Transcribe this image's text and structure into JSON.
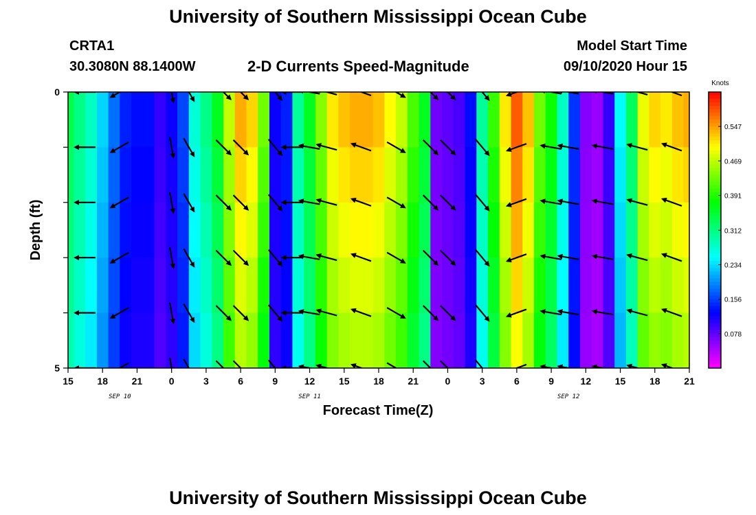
{
  "header": {
    "title_top": "University of Southern Mississippi Ocean Cube",
    "title_bottom": "University of Southern Mississippi Ocean Cube",
    "station_id": "CRTA1",
    "station_coords": "30.3080N 88.1400W",
    "plot_title": "2-D Currents Speed-Magnitude",
    "model_start_label": "Model Start Time",
    "model_start_value": "09/10/2020 Hour 15"
  },
  "chart_data": {
    "type": "heatmap",
    "title": "2-D Currents Speed-Magnitude",
    "xlabel": "Forecast Time(Z)",
    "ylabel": "Depth (ft)",
    "x_ticks": [
      "15",
      "18",
      "21",
      "0",
      "3",
      "6",
      "9",
      "12",
      "15",
      "18",
      "21",
      "0",
      "3",
      "6",
      "9",
      "12",
      "15",
      "18",
      "21"
    ],
    "x_range_hours": [
      0,
      54
    ],
    "day_labels": [
      {
        "label": "SEP 10",
        "hour": 4.5
      },
      {
        "label": "SEP 11",
        "hour": 21
      },
      {
        "label": "SEP 12",
        "hour": 43.5
      }
    ],
    "y_ticks": [
      "0",
      "5"
    ],
    "ylim": [
      0,
      5
    ],
    "depth_levels": [
      0,
      1,
      2,
      3,
      4,
      5
    ],
    "colorbar": {
      "title": "Knots",
      "ticks": [
        "0.547",
        "0.469",
        "0.391",
        "0.312",
        "0.234",
        "0.156",
        "0.078"
      ],
      "tick_values": [
        0.547,
        0.469,
        0.391,
        0.312,
        0.234,
        0.156,
        0.078
      ],
      "range": [
        0.0,
        0.625
      ]
    },
    "speed_profile": [
      {
        "hour": 0,
        "speed": 0.34
      },
      {
        "hour": 1,
        "speed": 0.31
      },
      {
        "hour": 2,
        "speed": 0.28
      },
      {
        "hour": 3,
        "speed": 0.23
      },
      {
        "hour": 4,
        "speed": 0.18
      },
      {
        "hour": 5,
        "speed": 0.14
      },
      {
        "hour": 6,
        "speed": 0.13
      },
      {
        "hour": 7,
        "speed": 0.13
      },
      {
        "hour": 8,
        "speed": 0.1
      },
      {
        "hour": 9,
        "speed": 0.12
      },
      {
        "hour": 10,
        "speed": 0.16
      },
      {
        "hour": 11,
        "speed": 0.27
      },
      {
        "hour": 12,
        "speed": 0.31
      },
      {
        "hour": 13,
        "speed": 0.36
      },
      {
        "hour": 14,
        "speed": 0.47
      },
      {
        "hour": 15,
        "speed": 0.54
      },
      {
        "hour": 16,
        "speed": 0.52
      },
      {
        "hour": 17,
        "speed": 0.43
      },
      {
        "hour": 18,
        "speed": 0.12
      },
      {
        "hour": 19,
        "speed": 0.14
      },
      {
        "hour": 20,
        "speed": 0.3
      },
      {
        "hour": 21,
        "speed": 0.36
      },
      {
        "hour": 22,
        "speed": 0.44
      },
      {
        "hour": 23,
        "speed": 0.51
      },
      {
        "hour": 24,
        "speed": 0.53
      },
      {
        "hour": 25,
        "speed": 0.54
      },
      {
        "hour": 26,
        "speed": 0.54
      },
      {
        "hour": 27,
        "speed": 0.53
      },
      {
        "hour": 28,
        "speed": 0.5
      },
      {
        "hour": 29,
        "speed": 0.47
      },
      {
        "hour": 30,
        "speed": 0.41
      },
      {
        "hour": 31,
        "speed": 0.36
      },
      {
        "hour": 32,
        "speed": 0.07
      },
      {
        "hour": 33,
        "speed": 0.08
      },
      {
        "hour": 34,
        "speed": 0.09
      },
      {
        "hour": 35,
        "speed": 0.13
      },
      {
        "hour": 36,
        "speed": 0.3
      },
      {
        "hour": 37,
        "speed": 0.4
      },
      {
        "hour": 38,
        "speed": 0.51
      },
      {
        "hour": 39,
        "speed": 0.58
      },
      {
        "hour": 40,
        "speed": 0.53
      },
      {
        "hour": 41,
        "speed": 0.43
      },
      {
        "hour": 42,
        "speed": 0.38
      },
      {
        "hour": 43,
        "speed": 0.28
      },
      {
        "hour": 44,
        "speed": 0.15
      },
      {
        "hour": 45,
        "speed": 0.06
      },
      {
        "hour": 46,
        "speed": 0.05
      },
      {
        "hour": 47,
        "speed": 0.1
      },
      {
        "hour": 48,
        "speed": 0.25
      },
      {
        "hour": 49,
        "speed": 0.33
      },
      {
        "hour": 50,
        "speed": 0.49
      },
      {
        "hour": 51,
        "speed": 0.52
      },
      {
        "hour": 52,
        "speed": 0.51
      },
      {
        "hour": 53,
        "speed": 0.53
      },
      {
        "hour": 54,
        "speed": 0.54
      }
    ],
    "vector_hours": [
      1.5,
      4.5,
      9,
      10.5,
      13.5,
      15,
      18,
      19.5,
      21,
      22.5,
      25.5,
      28.5,
      31.5,
      33,
      36,
      39,
      42,
      43.5,
      46.5,
      49.5,
      52.5
    ],
    "vector_directions_deg": [
      270,
      240,
      170,
      150,
      135,
      135,
      140,
      270,
      280,
      285,
      290,
      120,
      135,
      135,
      140,
      250,
      280,
      280,
      280,
      285,
      290
    ],
    "vector_depth_levels": [
      0,
      1,
      2,
      3,
      4,
      5
    ]
  }
}
